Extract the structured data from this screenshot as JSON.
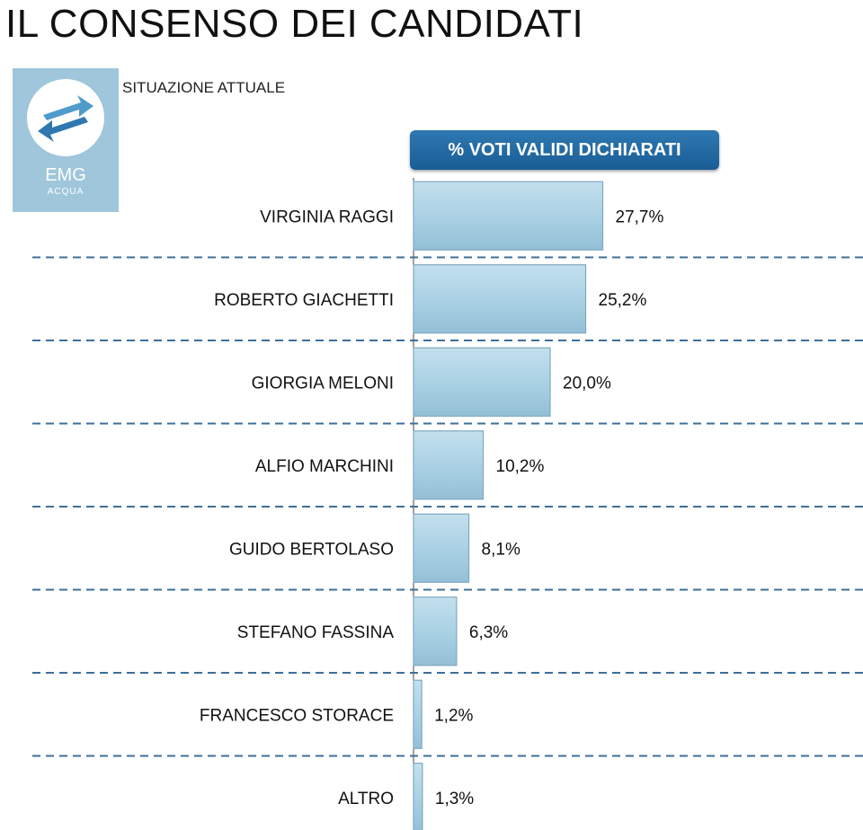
{
  "page": {
    "title": "IL CONSENSO DEI CANDIDATI",
    "subtitle": "SITUAZIONE ATTUALE"
  },
  "logo": {
    "name": "EMG",
    "sub": "ACQUA",
    "icon": "emg-logo-icon"
  },
  "colors": {
    "bar_fill": "#a8d0e3",
    "bar_edge": "#7fa9c0",
    "header_bg": "#1f67a3",
    "divider": "#3d6f9a",
    "logo_bg": "#9fc6db"
  },
  "chart_data": {
    "type": "bar",
    "orientation": "horizontal",
    "header": "% VOTI VALIDI DICHIARATI",
    "categories": [
      "VIRGINIA RAGGI",
      "ROBERTO GIACHETTI",
      "GIORGIA MELONI",
      "ALFIO MARCHINI",
      "GUIDO BERTOLASO",
      "STEFANO FASSINA",
      "FRANCESCO STORACE",
      "ALTRO"
    ],
    "values": [
      27.7,
      25.2,
      20.0,
      10.2,
      8.1,
      6.3,
      1.2,
      1.3
    ],
    "value_labels": [
      "27,7%",
      "25,2%",
      "20,0%",
      "10,2%",
      "8,1%",
      "6,3%",
      "1,2%",
      "1,3%"
    ],
    "unit": "%",
    "xlim": [
      0,
      65
    ],
    "grid": false,
    "legend": "none"
  }
}
